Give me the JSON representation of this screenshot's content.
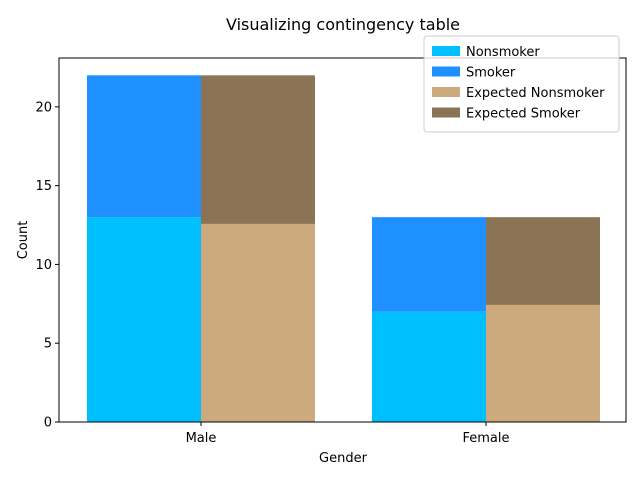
{
  "chart_data": {
    "type": "bar",
    "title": "Visualizing contingency table",
    "xlabel": "Gender",
    "ylabel": "Count",
    "categories": [
      "Male",
      "Female"
    ],
    "ylim": [
      0,
      23.1
    ],
    "yticks": [
      0,
      5,
      10,
      15,
      20
    ],
    "stacked": true,
    "grid": false,
    "legend_position": "top-right",
    "groups": [
      {
        "offset": "left",
        "series": [
          {
            "name": "Nonsmoker",
            "values": [
              13,
              7
            ],
            "color": "#00bfff"
          },
          {
            "name": "Smoker",
            "values": [
              9,
              6
            ],
            "color": "#1e90ff"
          }
        ]
      },
      {
        "offset": "right",
        "series": [
          {
            "name": "Expected Nonsmoker",
            "values": [
              12.57,
              7.43
            ],
            "color": "#cdaa7d"
          },
          {
            "name": "Expected Smoker",
            "values": [
              9.43,
              5.57
            ],
            "color": "#8b7355"
          }
        ]
      }
    ],
    "legend": [
      {
        "label": "Nonsmoker",
        "color": "#00bfff"
      },
      {
        "label": "Smoker",
        "color": "#1e90ff"
      },
      {
        "label": "Expected Nonsmoker",
        "color": "#cdaa7d"
      },
      {
        "label": "Expected Smoker",
        "color": "#8b7355"
      }
    ]
  }
}
